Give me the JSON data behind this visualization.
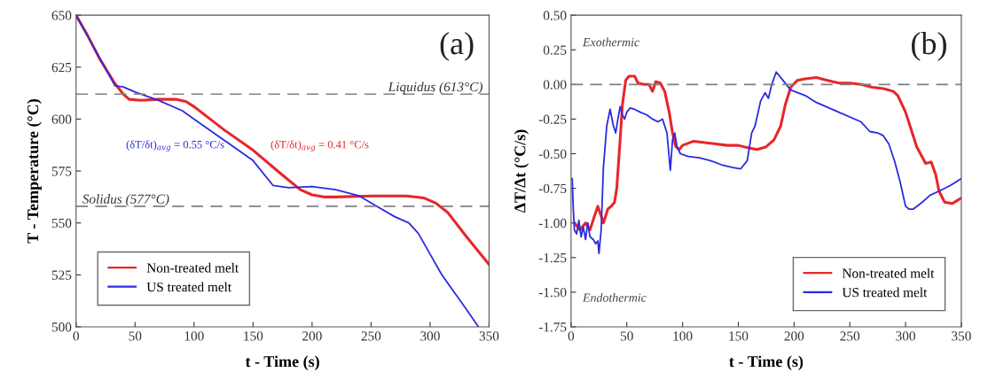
{
  "chart_data": [
    {
      "type": "line",
      "xlabel": "t - Time (s)",
      "ylabel": "T - Temperature (°C)",
      "xlim": [
        0,
        350
      ],
      "xticks": [
        0,
        50,
        100,
        150,
        200,
        250,
        300,
        350
      ],
      "ylim": [
        500,
        650
      ],
      "yticks": [
        500,
        525,
        550,
        575,
        600,
        625,
        650
      ],
      "grid": false,
      "legend": "bottom left",
      "ref_lines": [
        {
          "axis": "y",
          "value": 612,
          "label": "Liquidus (613°C)",
          "color": "#808080",
          "line_style": "dashed"
        },
        {
          "axis": "y",
          "value": 558,
          "label": "Solidus (577°C)",
          "color": "#808080",
          "line_style": "dashed"
        }
      ],
      "annotations": [
        "(a)",
        "(δT/δt)$_{avg}$ = 0.55 °C/s",
        "(δT/δt)$_{avg}$ = 0.41 °C/s"
      ],
      "series": [
        {
          "name": "Non-treated melt",
          "color": "#e8262a",
          "x": [
            0,
            10,
            20,
            33,
            40,
            45,
            55,
            70,
            85,
            93,
            100,
            125,
            150,
            175,
            190,
            200,
            210,
            220,
            250,
            280,
            295,
            305,
            315,
            330,
            340,
            350
          ],
          "values": [
            650,
            640,
            629,
            617,
            612,
            609.5,
            609,
            609.5,
            609.5,
            608.5,
            606,
            595,
            585,
            573,
            566,
            563.5,
            562.5,
            562.5,
            563,
            563,
            562,
            559.5,
            555,
            544,
            537,
            530
          ]
        },
        {
          "name": "US treated melt",
          "color": "#2b2be0",
          "x": [
            0,
            33,
            40,
            50,
            70,
            90,
            100,
            150,
            167,
            180,
            200,
            220,
            240,
            255,
            270,
            282,
            290,
            300,
            310,
            320,
            330,
            341
          ],
          "values": [
            650,
            616,
            615.5,
            613,
            609,
            604,
            600,
            580,
            568,
            567,
            567.5,
            566,
            563,
            558,
            553,
            550,
            545,
            535,
            525,
            517,
            509,
            500
          ]
        }
      ]
    },
    {
      "type": "line",
      "xlabel": "t - Time (s)",
      "ylabel": "ΔT/Δt (°C/s)",
      "xlim": [
        0,
        350
      ],
      "xticks": [
        0,
        50,
        100,
        150,
        200,
        250,
        300,
        350
      ],
      "ylim": [
        -1.75,
        0.5
      ],
      "yticks": [
        {
          "value": -1.75,
          "label": "-1.75"
        },
        {
          "value": -1.5,
          "label": "-1.50"
        },
        {
          "value": -1.25,
          "label": "-1.25"
        },
        {
          "value": -1.0,
          "label": "-1.00"
        },
        {
          "value": -0.75,
          "label": "-0.75"
        },
        {
          "value": -0.5,
          "label": "-0.50"
        },
        {
          "value": -0.25,
          "label": "-0.25"
        },
        {
          "value": 0,
          "label": "0.00"
        },
        {
          "value": 0.25,
          "label": "0.25"
        },
        {
          "value": 0.5,
          "label": "0.50"
        }
      ],
      "grid": false,
      "legend": "bottom right",
      "ref_lines": [
        {
          "axis": "y",
          "value": 0,
          "label": null,
          "color": "#808080",
          "line_style": "dashed"
        }
      ],
      "annotations": [
        "(b)",
        "Exothermic",
        "Endothermic"
      ],
      "series": [
        {
          "name": "Non-treated melt",
          "color": "#e8262a",
          "x": [
            3,
            8,
            13,
            17,
            21,
            24,
            27,
            29,
            33,
            36,
            39,
            41,
            44,
            46,
            49,
            52,
            57,
            60,
            65,
            70,
            73,
            76,
            80,
            84,
            88,
            91,
            94,
            97,
            100,
            110,
            120,
            130,
            140,
            150,
            160,
            167,
            175,
            182,
            188,
            192,
            197,
            203,
            210,
            220,
            230,
            240,
            250,
            260,
            270,
            280,
            289,
            293,
            300,
            310,
            318,
            323,
            327,
            330,
            335,
            342,
            346,
            350
          ],
          "values": [
            -1.0,
            -1.05,
            -1.0,
            -1.05,
            -0.95,
            -0.88,
            -0.95,
            -1.0,
            -0.9,
            -0.88,
            -0.85,
            -0.75,
            -0.4,
            -0.15,
            0.03,
            0.06,
            0.06,
            0.01,
            0.0,
            0.0,
            -0.05,
            0.02,
            0.01,
            -0.05,
            -0.2,
            -0.35,
            -0.45,
            -0.47,
            -0.44,
            -0.41,
            -0.42,
            -0.43,
            -0.44,
            -0.44,
            -0.46,
            -0.47,
            -0.45,
            -0.4,
            -0.3,
            -0.15,
            -0.02,
            0.03,
            0.04,
            0.05,
            0.03,
            0.01,
            0.01,
            0.0,
            -0.02,
            -0.03,
            -0.05,
            -0.08,
            -0.2,
            -0.45,
            -0.57,
            -0.56,
            -0.65,
            -0.77,
            -0.85,
            -0.86,
            -0.84,
            -0.82
          ]
        },
        {
          "name": "US treated melt",
          "color": "#2b2be0",
          "x": [
            1,
            2,
            3,
            5,
            7,
            9,
            11,
            13,
            15,
            17,
            20,
            22,
            24,
            25,
            27,
            29,
            32,
            35,
            38,
            40,
            42,
            44,
            46,
            48,
            50,
            53,
            57,
            62,
            68,
            73,
            78,
            82,
            86,
            89,
            91,
            93,
            95,
            98,
            105,
            115,
            125,
            135,
            145,
            152,
            158,
            162,
            165,
            170,
            174,
            177,
            180,
            184,
            190,
            197,
            210,
            220,
            240,
            260,
            268,
            275,
            280,
            285,
            290,
            295,
            300,
            303,
            307,
            315,
            322,
            330,
            340,
            350
          ],
          "values": [
            -0.68,
            -0.9,
            -1.05,
            -1.08,
            -0.98,
            -1.1,
            -1.03,
            -1.12,
            -1.0,
            -1.1,
            -1.12,
            -1.15,
            -1.13,
            -1.22,
            -1.05,
            -0.6,
            -0.3,
            -0.18,
            -0.3,
            -0.35,
            -0.25,
            -0.16,
            -0.22,
            -0.25,
            -0.2,
            -0.17,
            -0.18,
            -0.2,
            -0.22,
            -0.25,
            -0.27,
            -0.25,
            -0.35,
            -0.62,
            -0.4,
            -0.35,
            -0.45,
            -0.5,
            -0.52,
            -0.53,
            -0.55,
            -0.58,
            -0.6,
            -0.61,
            -0.55,
            -0.35,
            -0.3,
            -0.12,
            -0.06,
            -0.1,
            0.0,
            0.09,
            0.03,
            -0.04,
            -0.08,
            -0.13,
            -0.2,
            -0.27,
            -0.34,
            -0.35,
            -0.37,
            -0.43,
            -0.55,
            -0.7,
            -0.88,
            -0.9,
            -0.9,
            -0.85,
            -0.8,
            -0.77,
            -0.73,
            -0.68
          ]
        }
      ]
    }
  ]
}
